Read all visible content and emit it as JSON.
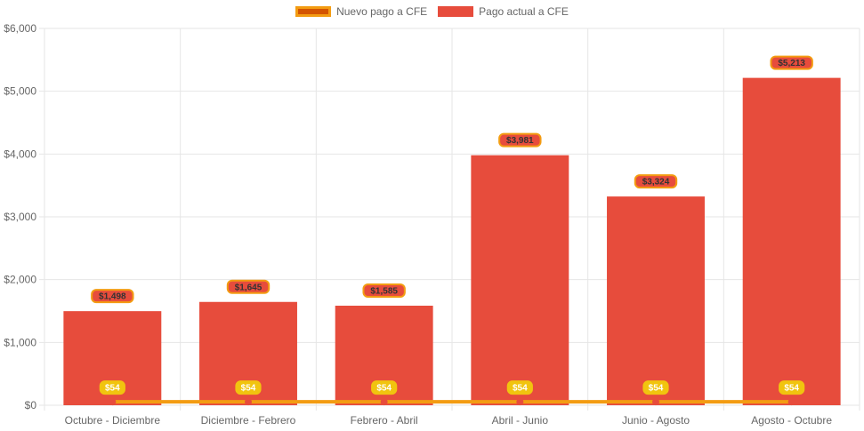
{
  "legend": {
    "line_label": "Nuevo pago a CFE",
    "bar_label": "Pago actual a CFE"
  },
  "colors": {
    "bar": "#e74c3c",
    "line": "#f39c12",
    "line_fill": "#d35400",
    "line_point": "#e74c3c",
    "bar_label_bg": "#e74c3c",
    "bar_label_border": "#f39c12",
    "line_label_bg": "#f1c40f",
    "grid": "#e6e6e6",
    "tick_text": "#666666"
  },
  "chart_data": {
    "type": "bar",
    "title": "",
    "xlabel": "",
    "ylabel": "",
    "ylim": [
      0,
      6000
    ],
    "yticks": [
      0,
      1000,
      2000,
      3000,
      4000,
      5000,
      6000
    ],
    "ytick_labels": [
      "$0",
      "$1,000",
      "$2,000",
      "$3,000",
      "$4,000",
      "$5,000",
      "$6,000"
    ],
    "categories": [
      "Octubre - Diciembre",
      "Diciembre - Febrero",
      "Febrero - Abril",
      "Abril - Junio",
      "Junio - Agosto",
      "Agosto - Octubre"
    ],
    "series": [
      {
        "name": "Pago actual a CFE",
        "type": "bar",
        "values": [
          1498,
          1645,
          1585,
          3981,
          3324,
          5213
        ],
        "labels": [
          "$1,498",
          "$1,645",
          "$1,585",
          "$3,981",
          "$3,324",
          "$5,213"
        ]
      },
      {
        "name": "Nuevo pago a CFE",
        "type": "line",
        "values": [
          54,
          54,
          54,
          54,
          54,
          54
        ],
        "labels": [
          "$54",
          "$54",
          "$54",
          "$54",
          "$54",
          "$54"
        ]
      }
    ],
    "legend_position": "top-center",
    "grid": true
  }
}
